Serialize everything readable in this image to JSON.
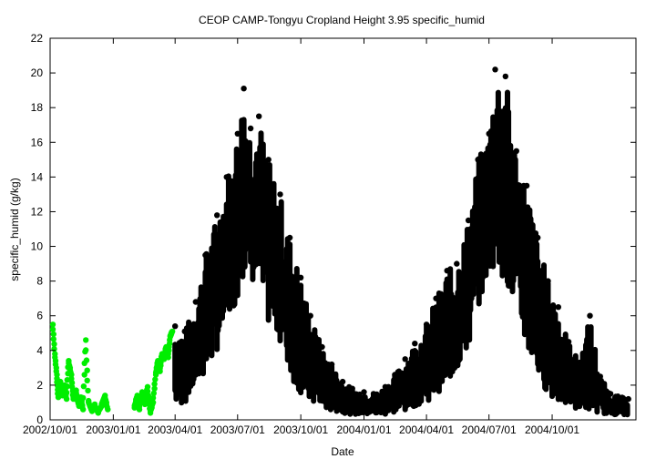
{
  "chart_data": {
    "type": "scatter",
    "title": "CEOP CAMP-Tongyu Cropland Height 3.95 specific_humid",
    "xlabel": "Date",
    "ylabel": "specific_humid (g/kg)",
    "xlim": [
      "2002-10-01",
      "2005-01-31"
    ],
    "ylim": [
      0,
      22
    ],
    "yticks": [
      0,
      2,
      4,
      6,
      8,
      10,
      12,
      14,
      16,
      18,
      20,
      22
    ],
    "xticks": [
      "2002/10/01",
      "2003/01/01",
      "2003/04/01",
      "2003/07/01",
      "2003/10/01",
      "2004/01/01",
      "2004/04/01",
      "2004/07/01",
      "2004/10/01"
    ],
    "grid": false,
    "legend": "none",
    "series": [
      {
        "color": "#00ee00",
        "marker": "filled-circle",
        "points": [
          [
            "2002-10-05",
            5.5
          ],
          [
            "2002-10-08",
            3.8
          ],
          [
            "2002-10-11",
            2.6
          ],
          [
            "2002-10-13",
            1.3
          ],
          [
            "2002-10-16",
            2.2
          ],
          [
            "2002-10-19",
            1.4
          ],
          [
            "2002-10-22",
            2.0
          ],
          [
            "2002-10-25",
            1.2
          ],
          [
            "2002-10-28",
            3.4
          ],
          [
            "2002-11-01",
            2.6
          ],
          [
            "2002-11-04",
            1.2
          ],
          [
            "2002-11-08",
            1.7
          ],
          [
            "2002-11-12",
            0.8
          ],
          [
            "2002-11-15",
            1.3
          ],
          [
            "2002-11-18",
            0.6
          ],
          [
            "2002-11-22",
            4.6
          ],
          [
            "2002-11-26",
            1.1
          ],
          [
            "2002-12-01",
            0.5
          ],
          [
            "2002-12-05",
            0.9
          ],
          [
            "2002-12-10",
            0.4
          ],
          [
            "2002-12-15",
            0.8
          ],
          [
            "2002-12-20",
            1.4
          ],
          [
            "2002-12-24",
            0.6
          ],
          [
            "2003-02-01",
            0.7
          ],
          [
            "2003-02-05",
            1.4
          ],
          [
            "2003-02-08",
            0.6
          ],
          [
            "2003-02-12",
            1.6
          ],
          [
            "2003-02-16",
            0.9
          ],
          [
            "2003-02-20",
            1.9
          ],
          [
            "2003-02-24",
            0.4
          ],
          [
            "2003-02-28",
            1.0
          ],
          [
            "2003-03-04",
            2.6
          ],
          [
            "2003-03-07",
            3.4
          ],
          [
            "2003-03-10",
            2.8
          ],
          [
            "2003-03-13",
            3.8
          ],
          [
            "2003-03-16",
            3.5
          ],
          [
            "2003-03-19",
            4.2
          ],
          [
            "2003-03-22",
            3.6
          ],
          [
            "2003-03-25",
            4.8
          ],
          [
            "2003-03-28",
            5.1
          ]
        ]
      },
      {
        "color": "#000000",
        "marker": "filled-circle",
        "envelope": [
          [
            "2003-04-01",
            0.8,
            5.4
          ],
          [
            "2003-04-15",
            0.9,
            5.1
          ],
          [
            "2003-05-01",
            2.0,
            6.8
          ],
          [
            "2003-05-15",
            2.6,
            9.5
          ],
          [
            "2003-06-01",
            4.0,
            11.8
          ],
          [
            "2003-06-15",
            5.5,
            14.0
          ],
          [
            "2003-07-01",
            7.0,
            16.5
          ],
          [
            "2003-07-10",
            8.5,
            19.1
          ],
          [
            "2003-07-20",
            8.0,
            16.8
          ],
          [
            "2003-08-01",
            7.5,
            17.5
          ],
          [
            "2003-08-15",
            5.5,
            15.0
          ],
          [
            "2003-09-01",
            4.5,
            13.0
          ],
          [
            "2003-09-15",
            2.5,
            10.5
          ],
          [
            "2003-10-01",
            1.5,
            8.2
          ],
          [
            "2003-10-15",
            0.9,
            6.0
          ],
          [
            "2003-11-01",
            0.6,
            4.2
          ],
          [
            "2003-11-15",
            0.5,
            3.2
          ],
          [
            "2003-12-01",
            0.4,
            2.2
          ],
          [
            "2003-12-15",
            0.3,
            1.8
          ],
          [
            "2004-01-01",
            0.3,
            1.6
          ],
          [
            "2004-01-15",
            0.3,
            1.5
          ],
          [
            "2004-02-01",
            0.3,
            1.9
          ],
          [
            "2004-02-15",
            0.4,
            2.6
          ],
          [
            "2004-03-01",
            0.5,
            3.5
          ],
          [
            "2004-03-15",
            0.8,
            4.4
          ],
          [
            "2004-04-01",
            1.0,
            5.5
          ],
          [
            "2004-04-15",
            1.5,
            7.0
          ],
          [
            "2004-05-01",
            2.0,
            8.6
          ],
          [
            "2004-05-15",
            2.8,
            9.0
          ],
          [
            "2004-06-01",
            4.0,
            11.5
          ],
          [
            "2004-06-15",
            6.5,
            15.0
          ],
          [
            "2004-07-01",
            8.5,
            16.5
          ],
          [
            "2004-07-10",
            9.0,
            20.2
          ],
          [
            "2004-07-25",
            8.0,
            19.8
          ],
          [
            "2004-08-10",
            6.0,
            15.5
          ],
          [
            "2004-08-25",
            4.0,
            13.5
          ],
          [
            "2004-09-10",
            2.5,
            10.5
          ],
          [
            "2004-09-25",
            1.5,
            8.0
          ],
          [
            "2004-10-10",
            0.9,
            6.5
          ],
          [
            "2004-10-25",
            0.8,
            4.5
          ],
          [
            "2004-11-10",
            0.6,
            3.3
          ],
          [
            "2004-11-25",
            0.5,
            6.0
          ],
          [
            "2004-12-10",
            0.4,
            2.5
          ],
          [
            "2004-12-25",
            0.3,
            1.5
          ],
          [
            "2005-01-20",
            0.3,
            1.2
          ]
        ]
      }
    ]
  }
}
